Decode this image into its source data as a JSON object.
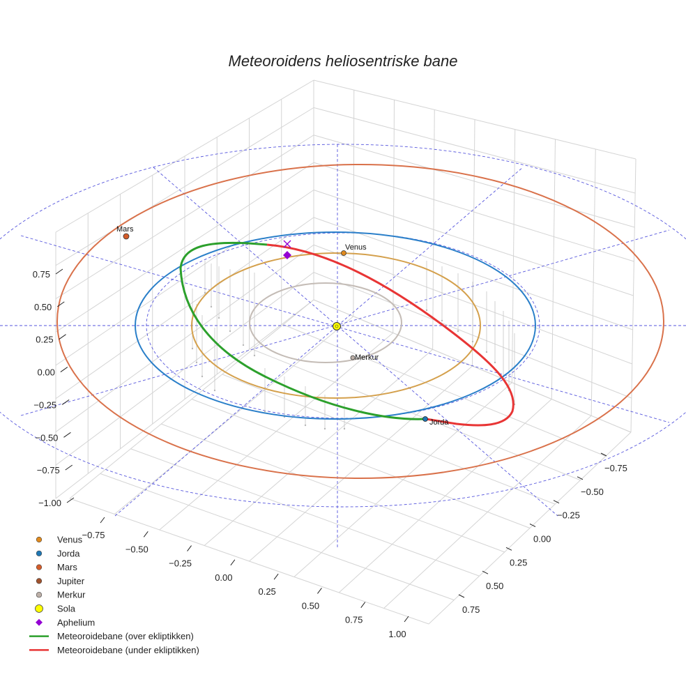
{
  "chart_data": {
    "type": "scatter3d",
    "title": "Meteoroidens heliosentriske bane",
    "z_ticks": [
      "0.75",
      "0.50",
      "0.25",
      "0.00",
      "−0.25",
      "−0.50",
      "−0.75",
      "−1.00"
    ],
    "x_ticks": [
      "−0.75",
      "−0.50",
      "−0.25",
      "0.00",
      "0.25",
      "0.50",
      "0.75",
      "1.00"
    ],
    "y_ticks": [
      "−0.75",
      "−0.50",
      "−0.25",
      "0.00",
      "0.25",
      "0.50",
      "0.75"
    ],
    "planet_labels": {
      "mars": "Mars",
      "venus": "Venus",
      "merkur": "Merkur",
      "jorda": "Jorda"
    },
    "orbits": [
      {
        "name": "Merkur",
        "a_au": 0.39,
        "color": "#c4bcb6"
      },
      {
        "name": "Venus",
        "a_au": 0.72,
        "color": "#d4a04c"
      },
      {
        "name": "Jorda",
        "a_au": 1.0,
        "color": "#2a7fc9"
      },
      {
        "name": "Mars",
        "a_au": 1.52,
        "color": "#d9714a"
      }
    ],
    "legend": [
      {
        "label": "Venus",
        "color": "#e08a1e",
        "marker": "circle"
      },
      {
        "label": "Jorda",
        "color": "#1f77b4",
        "marker": "circle"
      },
      {
        "label": "Mars",
        "color": "#d45c2a",
        "marker": "circle"
      },
      {
        "label": "Jupiter",
        "color": "#a0522d",
        "marker": "circle"
      },
      {
        "label": "Merkur",
        "color": "#bdb0a8",
        "marker": "circle"
      },
      {
        "label": "Sola",
        "color": "#ffff00",
        "marker": "circle-large"
      },
      {
        "label": "Aphelium",
        "color": "#9400d3",
        "marker": "diamond"
      },
      {
        "label": "Meteoroidebane (over ekliptikken)",
        "color": "#2ca02c",
        "marker": "line"
      },
      {
        "label": "Meteoroidebane (under ekliptikken)",
        "color": "#e83535",
        "marker": "line"
      }
    ],
    "meteoroid_orbit": {
      "above_color": "#2ca02c",
      "below_color": "#e83535"
    }
  }
}
